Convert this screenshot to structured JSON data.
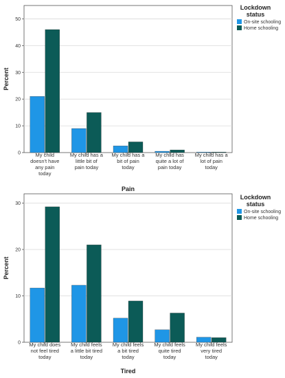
{
  "chart_data": [
    {
      "type": "bar",
      "xlabel": "Pain",
      "ylabel": "Percent",
      "ylim": [
        0,
        55
      ],
      "yticks": [
        0,
        10,
        20,
        30,
        40,
        50
      ],
      "categories": [
        [
          "My child",
          "doesn't have",
          "any pain",
          "today"
        ],
        [
          "My child has a",
          "little bit of",
          "pain today"
        ],
        [
          "My child has a",
          "bit of pain",
          "today"
        ],
        [
          "My child has",
          "quite a lot of",
          "pain today"
        ],
        [
          "My child has a",
          "lot of pain",
          "today"
        ]
      ],
      "series": [
        {
          "name": "On-site schooling",
          "values": [
            21.0,
            9.0,
            2.5,
            0.5,
            0.2
          ]
        },
        {
          "name": "Home schooling",
          "values": [
            46.0,
            15.0,
            4.0,
            1.0,
            0.2
          ]
        }
      ],
      "legend": {
        "title": [
          "Lockdown",
          "status"
        ],
        "placement": "top-right"
      },
      "grid": "horizontal"
    },
    {
      "type": "bar",
      "xlabel": "Tired",
      "ylabel": "Percent",
      "ylim": [
        0,
        32
      ],
      "yticks": [
        0,
        10,
        20,
        30
      ],
      "categories": [
        [
          "My child does",
          "not feel tired",
          "today"
        ],
        [
          "My child feels",
          "a little bit tired",
          "today"
        ],
        [
          "My child feels",
          "a bit tired",
          "today"
        ],
        [
          "My child feels",
          "quite tired",
          "today"
        ],
        [
          "My child feels",
          "very tired",
          "today"
        ]
      ],
      "series": [
        {
          "name": "On-site schooling",
          "values": [
            11.7,
            12.3,
            5.2,
            2.7,
            1.1
          ]
        },
        {
          "name": "Home schooling",
          "values": [
            29.2,
            21.0,
            8.9,
            6.3,
            1.0
          ]
        }
      ],
      "legend": {
        "title": [
          "Lockdown",
          "status"
        ],
        "placement": "top-right"
      },
      "grid": "horizontal"
    }
  ],
  "colors": {
    "on_site": "#1f96e6",
    "home": "#0c5b57",
    "axis": "#555555",
    "grid": "#d9d9d9"
  }
}
